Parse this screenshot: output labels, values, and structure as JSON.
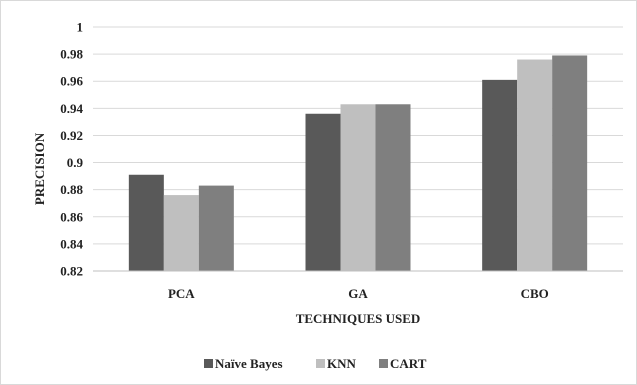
{
  "chart_data": {
    "type": "bar",
    "title": "",
    "xlabel": "TECHNIQUES  USED",
    "ylabel": "PRECISION",
    "categories": [
      "PCA",
      "GA",
      "CBO"
    ],
    "series": [
      {
        "name": "Naïve Bayes",
        "values": [
          0.891,
          0.936,
          0.961
        ],
        "color": "#595959"
      },
      {
        "name": "KNN",
        "values": [
          0.876,
          0.943,
          0.976
        ],
        "color": "#bfbfbf"
      },
      {
        "name": "CART",
        "values": [
          0.883,
          0.943,
          0.979
        ],
        "color": "#7f7f7f"
      }
    ],
    "ylim": [
      0.82,
      1.0
    ],
    "yticks": [
      "0.82",
      "0.84",
      "0.86",
      "0.88",
      "0.9",
      "0.92",
      "0.94",
      "0.96",
      "0.98",
      "1"
    ],
    "grid": true,
    "legend_position": "bottom"
  }
}
